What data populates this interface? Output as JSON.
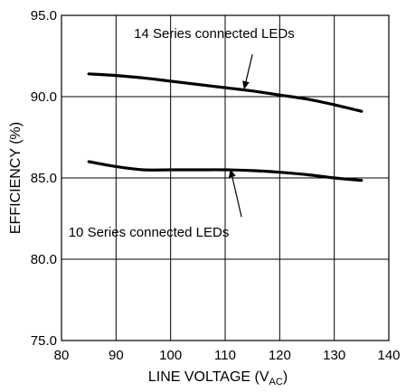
{
  "chart_data": {
    "type": "line",
    "xlabel_main": "LINE VOLTAGE (V",
    "xlabel_sub": "AC",
    "xlabel_close": ")",
    "ylabel": "EFFICIENCY (%)",
    "xlim": [
      80,
      140
    ],
    "ylim": [
      75.0,
      95.0
    ],
    "x_ticks": [
      80,
      90,
      100,
      110,
      120,
      130,
      140
    ],
    "y_ticks": [
      75.0,
      80.0,
      85.0,
      90.0,
      95.0
    ],
    "x_tick_labels": [
      "80",
      "90",
      "100",
      "110",
      "120",
      "130",
      "140"
    ],
    "y_tick_labels": [
      "75.0",
      "80.0",
      "85.0",
      "90.0",
      "95.0"
    ],
    "grid": true,
    "series": [
      {
        "name": "14 Series connected LEDs",
        "x": [
          85,
          90,
          95,
          100,
          105,
          110,
          115,
          120,
          125,
          130,
          135
        ],
        "y": [
          91.4,
          91.3,
          91.15,
          90.95,
          90.75,
          90.55,
          90.35,
          90.1,
          89.85,
          89.5,
          89.1
        ]
      },
      {
        "name": "10 Series connected LEDs",
        "x": [
          85,
          90,
          95,
          100,
          105,
          110,
          115,
          120,
          125,
          130,
          135
        ],
        "y": [
          86.0,
          85.7,
          85.5,
          85.5,
          85.5,
          85.5,
          85.45,
          85.35,
          85.2,
          85.0,
          84.85
        ]
      }
    ],
    "annotations": [
      {
        "text": "14 Series connected LEDs",
        "series_index": 0,
        "text_x": 108,
        "text_y": 93.6,
        "arrow_from": [
          115,
          92.6
        ],
        "arrow_to": [
          113.5,
          90.5
        ]
      },
      {
        "text": "10 Series connected LEDs",
        "series_index": 1,
        "text_x": 96,
        "text_y": 81.4,
        "arrow_from": [
          113,
          82.6
        ],
        "arrow_to": [
          111,
          85.5
        ]
      }
    ]
  }
}
